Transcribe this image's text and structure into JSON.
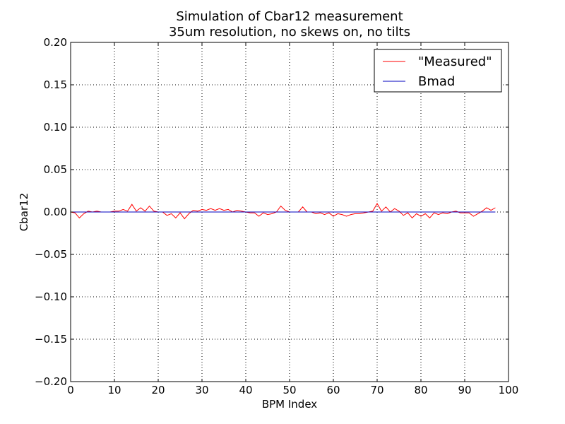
{
  "chart_data": {
    "type": "line",
    "title": "Simulation of Cbar12 measurement",
    "subtitle": "35um resolution, no skews on, no tilts",
    "xlabel": "BPM Index",
    "ylabel": "Cbar12",
    "xlim": [
      0,
      100
    ],
    "ylim": [
      -0.2,
      0.2
    ],
    "xticks": [
      0,
      10,
      20,
      30,
      40,
      50,
      60,
      70,
      80,
      90,
      100
    ],
    "yticks": [
      -0.2,
      -0.15,
      -0.1,
      -0.05,
      0.0,
      0.05,
      0.1,
      0.15,
      0.2
    ],
    "xtick_labels": [
      "0",
      "10",
      "20",
      "30",
      "40",
      "50",
      "60",
      "70",
      "80",
      "90",
      "100"
    ],
    "ytick_labels": [
      "−0.20",
      "−0.15",
      "−0.10",
      "−0.05",
      "0.00",
      "0.05",
      "0.10",
      "0.15",
      "0.20"
    ],
    "grid": true,
    "legend_position": "top-right",
    "series": [
      {
        "name": "\"Measured\"",
        "color": "#ff0000",
        "x": [
          0,
          1,
          2,
          3,
          4,
          5,
          6,
          7,
          8,
          9,
          10,
          11,
          12,
          13,
          14,
          15,
          16,
          17,
          18,
          19,
          20,
          21,
          22,
          23,
          24,
          25,
          26,
          27,
          28,
          29,
          30,
          31,
          32,
          33,
          34,
          35,
          36,
          37,
          38,
          39,
          40,
          41,
          42,
          43,
          44,
          45,
          46,
          47,
          48,
          49,
          50,
          51,
          52,
          53,
          54,
          55,
          56,
          57,
          58,
          59,
          60,
          61,
          62,
          63,
          64,
          65,
          66,
          67,
          68,
          69,
          70,
          71,
          72,
          73,
          74,
          75,
          76,
          77,
          78,
          79,
          80,
          81,
          82,
          83,
          84,
          85,
          86,
          87,
          88,
          89,
          90,
          91,
          92,
          93,
          94,
          95,
          96,
          97
        ],
        "y": [
          0.0,
          -0.001,
          -0.007,
          -0.002,
          0.001,
          0.0,
          0.001,
          0.0,
          0.0,
          0.0,
          0.001,
          0.001,
          0.003,
          0.001,
          0.009,
          0.001,
          0.005,
          0.001,
          0.007,
          0.001,
          0.0,
          0.0,
          -0.004,
          -0.002,
          -0.007,
          -0.001,
          -0.008,
          -0.002,
          0.002,
          0.001,
          0.003,
          0.002,
          0.004,
          0.002,
          0.004,
          0.002,
          0.003,
          0.0,
          0.002,
          0.001,
          0.0,
          -0.001,
          -0.001,
          -0.005,
          -0.001,
          -0.003,
          -0.002,
          0.0,
          0.007,
          0.002,
          0.0,
          0.0,
          0.0,
          0.006,
          0.0,
          0.0,
          -0.002,
          -0.001,
          -0.003,
          -0.001,
          -0.005,
          -0.002,
          -0.003,
          -0.005,
          -0.003,
          -0.002,
          -0.002,
          -0.001,
          0.0,
          0.001,
          0.01,
          0.001,
          0.006,
          0.0,
          0.004,
          0.001,
          -0.004,
          -0.001,
          -0.007,
          -0.002,
          -0.005,
          -0.002,
          -0.007,
          -0.001,
          -0.003,
          -0.001,
          -0.002,
          0.0,
          0.001,
          -0.001,
          -0.001,
          -0.001,
          -0.005,
          -0.002,
          0.001,
          0.005,
          0.002,
          0.005
        ]
      },
      {
        "name": "Bmad",
        "color": "#0000bf",
        "x": [
          0,
          97
        ],
        "y": [
          0.0,
          0.0
        ]
      }
    ]
  }
}
